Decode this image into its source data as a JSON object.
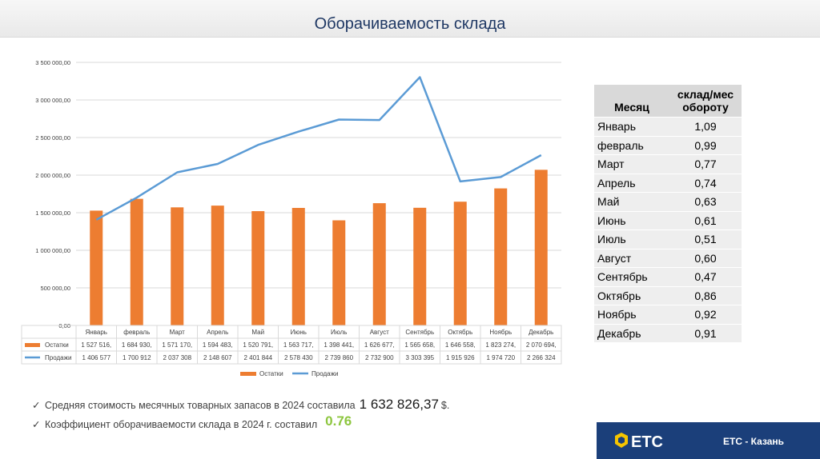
{
  "header": {
    "title": "Оборачиваемость склада"
  },
  "chart_data": {
    "type": "bar",
    "categories": [
      "Январь",
      "февраль",
      "Март",
      "Апрель",
      "Май",
      "Июнь",
      "Июль",
      "Август",
      "Сентябрь",
      "Октябрь",
      "Ноябрь",
      "Декабрь"
    ],
    "series": [
      {
        "name": "Остатки",
        "type": "bar",
        "color": "#ed7d31",
        "values": [
          1527516,
          1684930,
          1571170,
          1594483,
          1520791,
          1563717,
          1398441,
          1626677,
          1565658,
          1646558,
          1823274,
          2070694
        ],
        "table_labels": [
          "1 527 516,",
          "1 684 930,",
          "1 571 170,",
          "1 594 483,",
          "1 520 791,",
          "1 563 717,",
          "1 398 441,",
          "1 626 677,",
          "1 565 658,",
          "1 646 558,",
          "1 823 274,",
          "2 070 694,"
        ]
      },
      {
        "name": "Продажи",
        "type": "line",
        "color": "#5b9bd5",
        "values": [
          1406577,
          1700912,
          2037308,
          2148607,
          2401844,
          2578430,
          2739860,
          2732900,
          3303395,
          1915926,
          1974720,
          2266324
        ],
        "table_labels": [
          "1 406 577",
          "1 700 912",
          "2 037 308",
          "2 148 607",
          "2 401 844",
          "2 578 430",
          "2 739 860",
          "2 732 900",
          "3 303 395",
          "1 915 926",
          "1 974 720",
          "2 266 324"
        ]
      }
    ],
    "ylim": [
      0,
      3500000
    ],
    "yticks": [
      "0,00",
      "500 000,00",
      "1 000 000,00",
      "1 500 000,00",
      "2 000 000,00",
      "2 500 000,00",
      "3 000 000,00",
      "3 500 000,00"
    ],
    "grid": true,
    "legend": "bottom",
    "data_table": true
  },
  "table": {
    "headers": [
      "Месяц",
      "склад/мес обороту"
    ],
    "rows": [
      [
        "Январь",
        "1,09"
      ],
      [
        "февраль",
        "0,99"
      ],
      [
        "Март",
        "0,77"
      ],
      [
        "Апрель",
        "0,74"
      ],
      [
        "Май",
        "0,63"
      ],
      [
        "Июнь",
        "0,61"
      ],
      [
        "Июль",
        "0,51"
      ],
      [
        "Август",
        "0,60"
      ],
      [
        "Сентябрь",
        "0,47"
      ],
      [
        "Октябрь",
        "0,86"
      ],
      [
        "Ноябрь",
        "0,92"
      ],
      [
        "Декабрь",
        "0,91"
      ]
    ]
  },
  "notes": {
    "check_icon": "check-icon",
    "line1_text": "Средняя стоимость месячных товарных запасов в 2024 составила",
    "line1_value": "1 632 826,37",
    "line1_unit": "$.",
    "line2_text": "Коэффициент оборачиваемости склада в 2024 г. составил",
    "line2_value": "0.76"
  },
  "footer": {
    "logo_text": "ETC",
    "city": "ETC - Казань",
    "bg_color": "#1b3f7a",
    "logo_color": "#f5c400"
  }
}
